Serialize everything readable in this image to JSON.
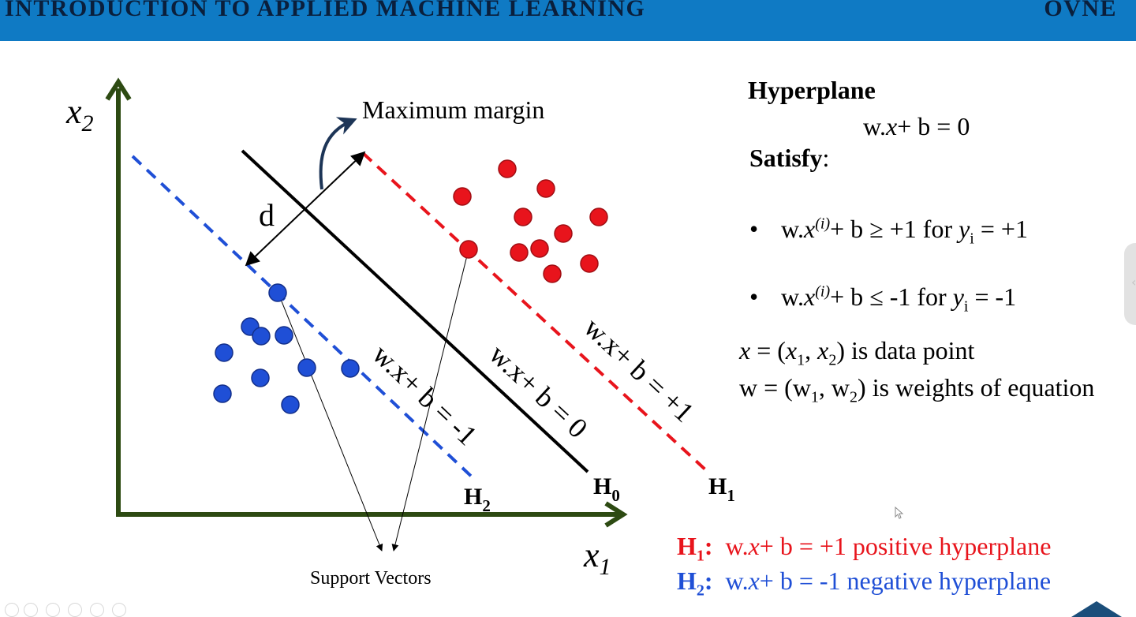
{
  "header": {
    "title": "INTRODUCTION TO APPLIED MACHINE LEARNING",
    "brand": "OVNE",
    "bar_color": "#0f7ac4"
  },
  "diagram": {
    "axis_x_label": "x",
    "axis_x_sub": "1",
    "axis_y_label": "x",
    "axis_y_sub": "2",
    "max_margin_label": "Maximum margin",
    "d_label": "d",
    "support_vectors_label": "Support Vectors",
    "h0": {
      "name": "H",
      "sub": "0",
      "equation": "w.x+ b = 0"
    },
    "h1": {
      "name": "H",
      "sub": "1",
      "equation": "w.x+ b = +1"
    },
    "h2": {
      "name": "H",
      "sub": "2",
      "equation": "w.x+ b = -1"
    },
    "colors": {
      "axis": "#2d4a12",
      "positive": "#e8141c",
      "negative": "#1f4fd6",
      "arrow": "#1d3557"
    }
  },
  "panel": {
    "hyperplane_heading": "Hyperplane",
    "hyperplane_eq_pre": "w.",
    "hyperplane_eq_x": "x",
    "hyperplane_eq_post": "+ b = 0",
    "satisfy_heading": "Satisfy",
    "satisfy_colon": ":",
    "bullet": "•",
    "cond1": {
      "pre": "w.",
      "x": "x",
      "sup": "(i)",
      "mid": "+ b ≥ +1 for ",
      "y": "y",
      "sub": "i",
      "post": " = +1"
    },
    "cond2": {
      "pre": "w.",
      "x": "x",
      "sup": "(i)",
      "mid": "+ b ≤ -1 for ",
      "y": "y",
      "sub": "i",
      "post": " = -1"
    },
    "def_x": {
      "x": "x",
      "eq": " = (",
      "x1": "x",
      "s1": "1",
      "comma": ", ",
      "x2": "x",
      "s2": "2",
      "rest": ") is data point"
    },
    "def_w": {
      "text1": "w = (w",
      "s1": "1",
      "text2": ", w",
      "s2": "2",
      "rest": ") is weights of equation"
    }
  },
  "legend": {
    "h1_name": "H",
    "h1_sub": "1",
    "h1_colon": ":",
    "h1_pre": "w.",
    "h1_x": "x",
    "h1_post": "+ b = +1 positive hyperplane",
    "h2_name": "H",
    "h2_sub": "2",
    "h2_colon": ":",
    "h2_pre": "w.",
    "h2_x": "x",
    "h2_post": "+ b = -1 negative hyperplane"
  },
  "icons": {
    "side_tab": "chevron-left-icon",
    "cursor": "mouse-pointer-icon",
    "logo": "university-logo"
  }
}
